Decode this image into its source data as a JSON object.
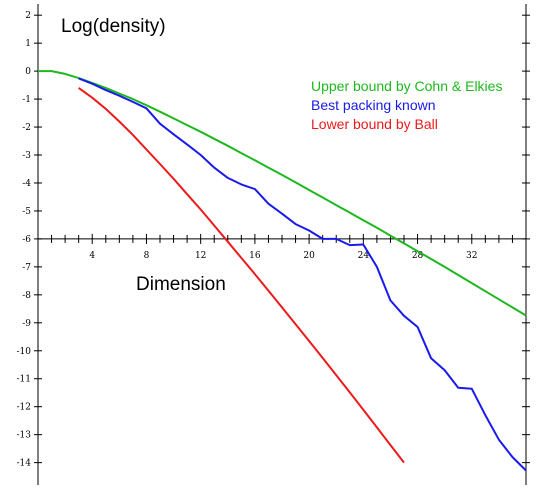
{
  "chart_data": {
    "type": "line",
    "ylabel": "Log(density)",
    "xlabel": "Dimension",
    "xlim": [
      0,
      36
    ],
    "ylim": [
      -14.8,
      2.4
    ],
    "x_axis_at_y": -6,
    "x_ticks": [
      4,
      8,
      12,
      16,
      20,
      24,
      28,
      32
    ],
    "y_ticks": [
      2,
      1,
      0,
      -1,
      -2,
      -3,
      -4,
      -5,
      -6,
      -7,
      -8,
      -9,
      -10,
      -11,
      -12,
      -13,
      -14
    ],
    "y_tick_labels": [
      "2",
      "1",
      "0",
      "-1",
      "-2",
      "-3",
      "-4",
      "-5",
      "-6",
      "-7",
      "-8",
      "-9",
      "-10",
      "-11",
      "-12",
      "-13",
      "-14"
    ],
    "x_tick_labels": [
      "4",
      "8",
      "12",
      "16",
      "20",
      "24",
      "28",
      "32"
    ],
    "grid": false,
    "legend_position": "right",
    "series": [
      {
        "name": "Upper bound by Cohn & Elkies",
        "color": "#1db81d",
        "x": [
          0,
          1,
          2,
          3,
          4,
          5,
          6,
          7,
          8,
          9,
          10,
          11,
          12,
          13,
          14,
          15,
          16,
          17,
          18,
          19,
          20,
          21,
          22,
          23,
          24,
          25,
          26,
          27,
          28,
          29,
          30,
          31,
          32,
          33,
          34,
          35,
          36
        ],
        "y": [
          0,
          0,
          -0.1,
          -0.25,
          -0.42,
          -0.6,
          -0.8,
          -1.0,
          -1.22,
          -1.45,
          -1.69,
          -1.93,
          -2.17,
          -2.42,
          -2.67,
          -2.93,
          -3.19,
          -3.45,
          -3.71,
          -3.98,
          -4.25,
          -4.52,
          -4.79,
          -5.06,
          -5.33,
          -5.6,
          -5.88,
          -6.16,
          -6.44,
          -6.72,
          -7.0,
          -7.29,
          -7.58,
          -7.87,
          -8.16,
          -8.45,
          -8.74
        ]
      },
      {
        "name": "Best packing known",
        "color": "#1a1aee",
        "x": [
          3,
          4,
          5,
          6,
          7,
          8,
          9,
          10,
          11,
          12,
          13,
          14,
          15,
          16,
          17,
          18,
          19,
          20,
          21,
          22,
          23,
          24,
          25,
          26,
          27,
          28,
          29,
          30,
          31,
          32,
          33,
          34,
          35,
          36
        ],
        "y": [
          -0.26,
          -0.45,
          -0.68,
          -0.88,
          -1.1,
          -1.33,
          -1.88,
          -2.26,
          -2.62,
          -3.0,
          -3.45,
          -3.82,
          -4.05,
          -4.22,
          -4.74,
          -5.1,
          -5.47,
          -5.7,
          -6.0,
          -6.0,
          -6.22,
          -6.2,
          -7.0,
          -8.2,
          -8.75,
          -9.15,
          -10.27,
          -10.7,
          -11.32,
          -11.36,
          -12.3,
          -13.18,
          -13.8,
          -14.28
        ]
      },
      {
        "name": "Lower bound by Ball",
        "color": "#ee1a1a",
        "x": [
          3,
          4,
          5,
          6,
          7,
          8,
          9,
          10,
          11,
          12,
          13,
          14,
          15,
          16,
          17,
          18,
          19,
          20,
          21,
          22,
          23,
          24,
          25,
          26,
          27
        ],
        "y": [
          -0.6,
          -0.95,
          -1.35,
          -1.8,
          -2.28,
          -2.8,
          -3.32,
          -3.85,
          -4.4,
          -4.95,
          -5.52,
          -6.1,
          -6.68,
          -7.26,
          -7.85,
          -8.45,
          -9.05,
          -9.65,
          -10.26,
          -10.87,
          -11.49,
          -12.11,
          -12.74,
          -13.37,
          -14.0
        ]
      }
    ]
  }
}
